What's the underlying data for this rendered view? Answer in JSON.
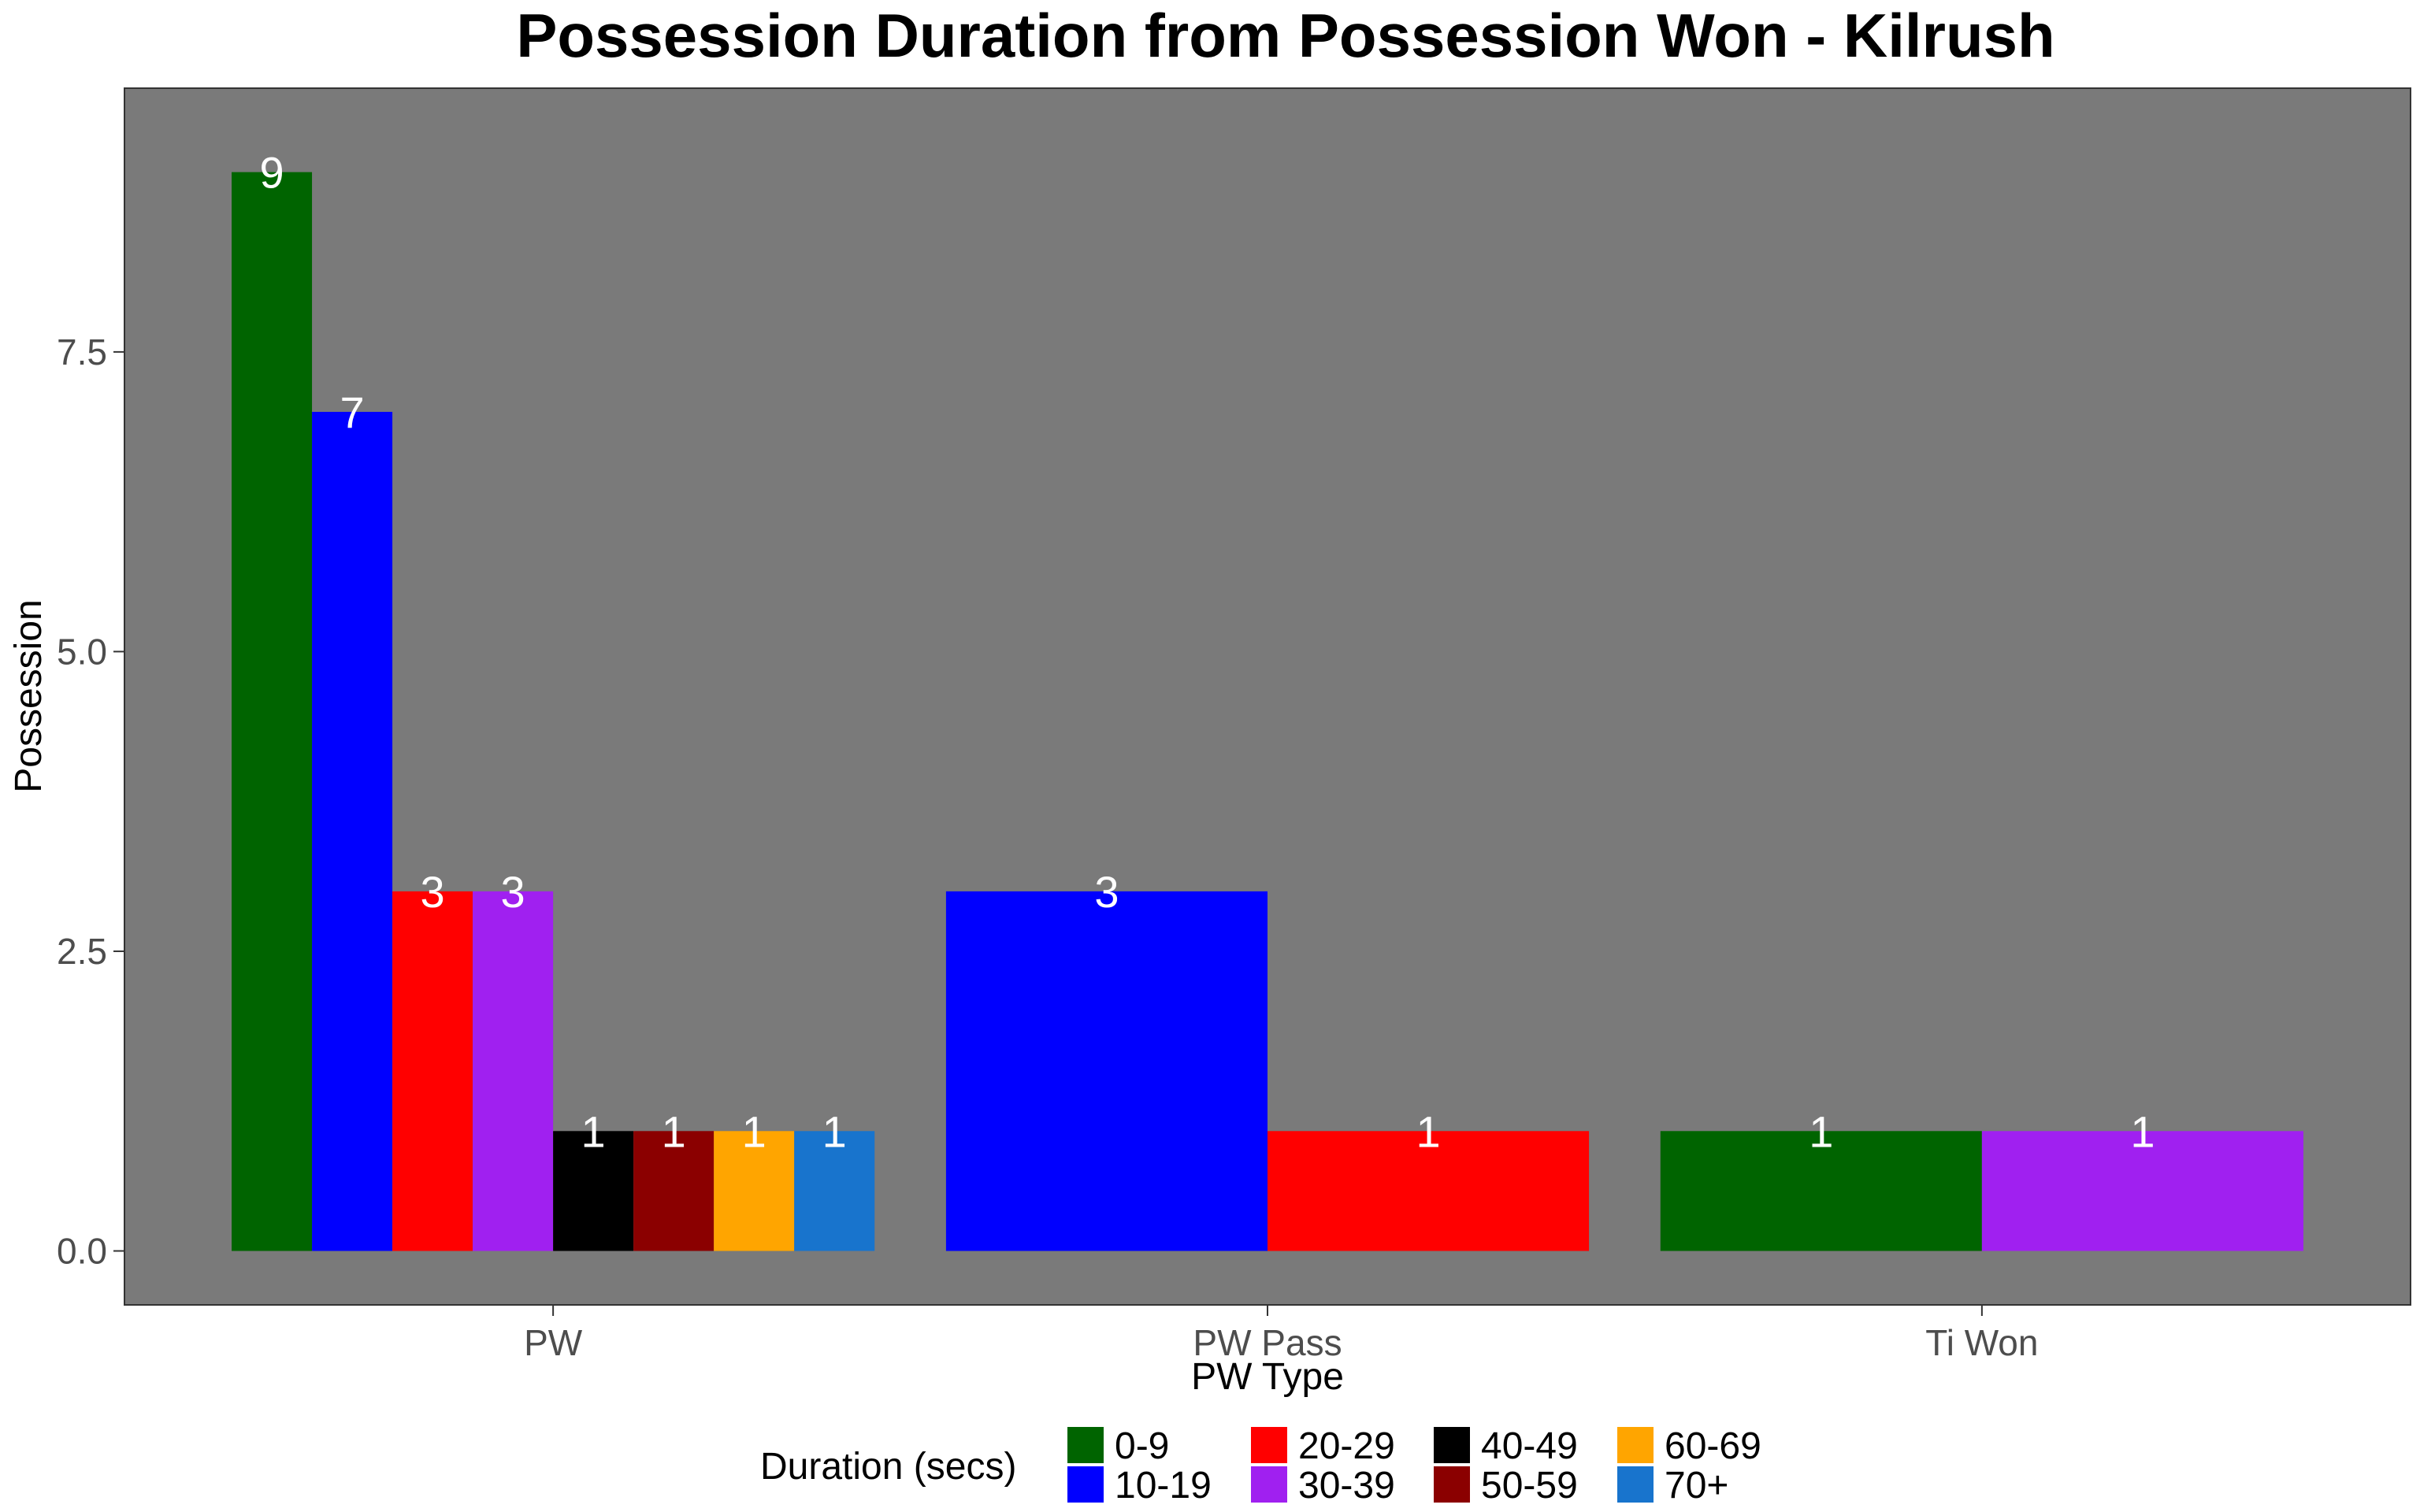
{
  "chart_data": {
    "type": "bar",
    "title": "Possession Duration from Possession Won - Kilrush",
    "xlabel": "PW Type",
    "ylabel": "Possession",
    "ylim": [
      -0.45,
      9.7
    ],
    "yticks": [
      "0.0",
      "2.5",
      "5.0",
      "7.5"
    ],
    "ytick_values": [
      0,
      2.5,
      5,
      7.5
    ],
    "grid": false,
    "panel_color": "#7a7a7a",
    "legend": {
      "title": "Duration (secs)",
      "placement": "bottom",
      "entries": [
        {
          "label": "0-9",
          "color": "#006400"
        },
        {
          "label": "10-19",
          "color": "#0000ff"
        },
        {
          "label": "20-29",
          "color": "#ff0000"
        },
        {
          "label": "30-39",
          "color": "#a020f0"
        },
        {
          "label": "40-49",
          "color": "#000000"
        },
        {
          "label": "50-59",
          "color": "#8b0000"
        },
        {
          "label": "60-69",
          "color": "#ffa500"
        },
        {
          "label": "70+",
          "color": "#1874cd"
        }
      ]
    },
    "categories": [
      "PW",
      "PW Pass",
      "Ti Won"
    ],
    "groups": [
      {
        "category": "PW",
        "bars": [
          {
            "duration": "0-9",
            "value": 9,
            "label": "9"
          },
          {
            "duration": "10-19",
            "value": 7,
            "label": "7"
          },
          {
            "duration": "20-29",
            "value": 3,
            "label": "3"
          },
          {
            "duration": "30-39",
            "value": 3,
            "label": "3"
          },
          {
            "duration": "40-49",
            "value": 1,
            "label": "1"
          },
          {
            "duration": "50-59",
            "value": 1,
            "label": "1"
          },
          {
            "duration": "60-69",
            "value": 1,
            "label": "1"
          },
          {
            "duration": "70+",
            "value": 1,
            "label": "1"
          }
        ]
      },
      {
        "category": "PW Pass",
        "bars": [
          {
            "duration": "10-19",
            "value": 3,
            "label": "3"
          },
          {
            "duration": "20-29",
            "value": 1,
            "label": "1"
          }
        ]
      },
      {
        "category": "Ti Won",
        "bars": [
          {
            "duration": "0-9",
            "value": 1,
            "label": "1"
          },
          {
            "duration": "30-39",
            "value": 1,
            "label": "1"
          }
        ]
      }
    ]
  }
}
